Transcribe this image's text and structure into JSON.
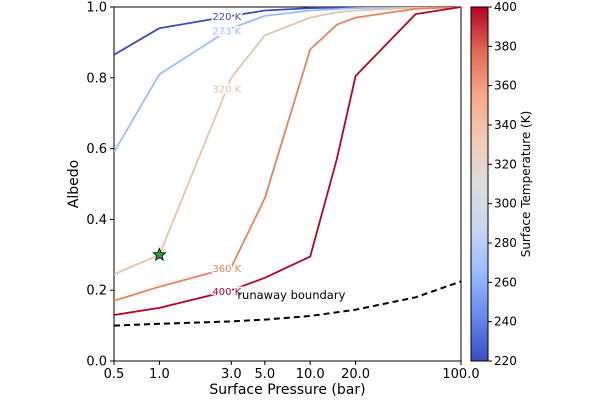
{
  "chart_data": {
    "type": "line",
    "xlabel": "Surface Pressure (bar)",
    "ylabel": "Albedo",
    "x_scale": "log",
    "xlim": [
      0.5,
      100
    ],
    "ylim": [
      0,
      1
    ],
    "x_ticks": [
      0.5,
      1,
      3,
      5,
      10,
      20,
      100
    ],
    "x_tick_labels": [
      "0.5",
      "1.0",
      "3.0",
      "5.0",
      "10.0",
      "20.0",
      "100.0"
    ],
    "y_ticks": [
      0,
      0.2,
      0.4,
      0.6,
      0.8,
      1.0
    ],
    "y_tick_labels": [
      "0.0",
      "0.2",
      "0.4",
      "0.6",
      "0.8",
      "1.0"
    ],
    "grid": false,
    "series": [
      {
        "name": "220 K",
        "temperature": 220,
        "color": "#3b4cc0",
        "x": [
          0.5,
          1,
          3,
          5,
          10,
          20,
          50,
          100
        ],
        "y": [
          0.865,
          0.94,
          0.975,
          0.99,
          0.997,
          0.999,
          1.0,
          1.0
        ]
      },
      {
        "name": "273 K",
        "temperature": 273,
        "color": "#9bbcff",
        "x": [
          0.5,
          1,
          3,
          5,
          10,
          20,
          50,
          100
        ],
        "y": [
          0.59,
          0.81,
          0.94,
          0.975,
          0.99,
          0.997,
          0.999,
          1.0
        ]
      },
      {
        "name": "320 K",
        "temperature": 320,
        "color": "#e8c2ab",
        "x": [
          0.5,
          1,
          3,
          5,
          10,
          15,
          20,
          50,
          100
        ],
        "y": [
          0.245,
          0.3,
          0.8,
          0.92,
          0.97,
          0.985,
          0.99,
          0.998,
          1.0
        ]
      },
      {
        "name": "360 K",
        "temperature": 360,
        "color": "#e8825f",
        "x": [
          0.5,
          1,
          3,
          5,
          10,
          15,
          20,
          50,
          100
        ],
        "y": [
          0.17,
          0.21,
          0.265,
          0.46,
          0.88,
          0.95,
          0.97,
          0.995,
          1.0
        ]
      },
      {
        "name": "400 K",
        "temperature": 400,
        "color": "#b40426",
        "x": [
          0.5,
          1,
          3,
          5,
          10,
          15,
          20,
          50,
          100
        ],
        "y": [
          0.13,
          0.15,
          0.2,
          0.235,
          0.295,
          0.57,
          0.805,
          0.98,
          1.0
        ]
      }
    ],
    "boundary": {
      "label": "runaway boundary",
      "color": "#000000",
      "x": [
        0.5,
        1,
        3,
        5,
        10,
        20,
        50,
        100
      ],
      "y": [
        0.1,
        0.105,
        0.112,
        0.117,
        0.127,
        0.145,
        0.18,
        0.225
      ]
    },
    "marker": {
      "shape": "star",
      "color": "#2ca02c",
      "x": 1.0,
      "y": 0.3
    },
    "colorbar": {
      "label": "Surface Temperature (K)",
      "range": [
        220,
        400
      ],
      "ticks": [
        220,
        240,
        260,
        280,
        300,
        320,
        340,
        360,
        380,
        400
      ],
      "colormap": "coolwarm",
      "stops": [
        "#3b4cc0",
        "#6788ee",
        "#9abbff",
        "#c9d7f0",
        "#dddcdc",
        "#f2cbb7",
        "#f7a889",
        "#e26952",
        "#b40426"
      ]
    }
  }
}
